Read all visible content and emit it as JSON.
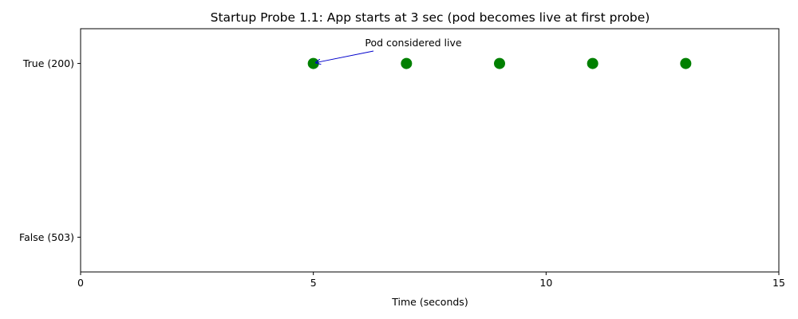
{
  "chart_data": {
    "type": "scatter",
    "title": "Startup Probe 1.1: App starts at 3 sec (pod becomes live at first probe)",
    "xlabel": "Time (seconds)",
    "ylabel": "",
    "xlim": [
      0,
      15
    ],
    "ylim": [
      -0.2,
      1.2
    ],
    "x_ticks": [
      {
        "value": 0,
        "label": "0"
      },
      {
        "value": 5,
        "label": "5"
      },
      {
        "value": 10,
        "label": "10"
      },
      {
        "value": 15,
        "label": "15"
      }
    ],
    "y_ticks": [
      {
        "value": 1,
        "label": "True (200)"
      },
      {
        "value": 0,
        "label": "False (503)"
      }
    ],
    "points": [
      {
        "x": 5,
        "y": 1
      },
      {
        "x": 7,
        "y": 1
      },
      {
        "x": 9,
        "y": 1
      },
      {
        "x": 11,
        "y": 1
      },
      {
        "x": 13,
        "y": 1
      }
    ],
    "point_color": "#008000",
    "annotation": {
      "text": "Pod considered live",
      "target_x": 5,
      "target_y": 1,
      "arrow_color": "#0000cc"
    },
    "grid": false,
    "legend": "none"
  }
}
